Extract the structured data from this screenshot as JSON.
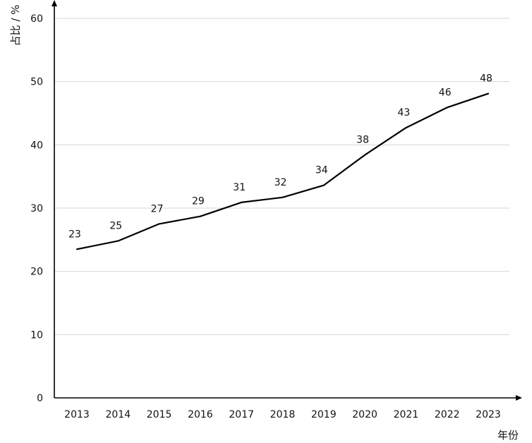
{
  "chart_data": {
    "type": "line",
    "title": "",
    "xlabel": "年份",
    "ylabel": "占比 / %",
    "categories": [
      "2013",
      "2014",
      "2015",
      "2016",
      "2017",
      "2018",
      "2019",
      "2020",
      "2021",
      "2022",
      "2023"
    ],
    "values": [
      23.5,
      24.8,
      27.5,
      28.7,
      30.9,
      31.7,
      33.6,
      38.4,
      42.7,
      45.9,
      48.1
    ],
    "data_labels": [
      "23",
      "25",
      "27",
      "29",
      "31",
      "32",
      "34",
      "38",
      "43",
      "46",
      "48"
    ],
    "ylim": [
      0,
      60
    ],
    "yticks": [
      "0",
      "10",
      "20",
      "30",
      "40",
      "50",
      "60"
    ],
    "grid": true,
    "legend": "none",
    "line_color": "#000000",
    "grid_color": "#d6d6d6"
  }
}
